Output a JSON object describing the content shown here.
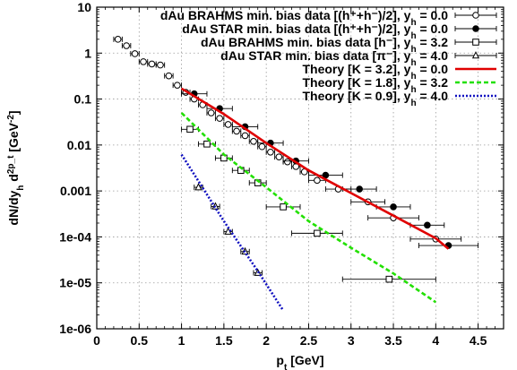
{
  "chart_data": {
    "type": "scatter",
    "x_axis": {
      "label": "p_t [GeV]",
      "range": [
        0,
        4.8
      ],
      "scale": "linear",
      "ticks": [
        0,
        0.5,
        1,
        1.5,
        2,
        2.5,
        3,
        3.5,
        4,
        4.5
      ],
      "tick_labels": [
        "0",
        "0.5",
        "1",
        "1.5",
        "2",
        "2.5",
        "3",
        "3.5",
        "4",
        "4.5"
      ]
    },
    "y_axis": {
      "label": "dN/dy_h d^2p_t [GeV^-2]",
      "range": [
        1e-06,
        10
      ],
      "scale": "log",
      "ticks": [
        1e-06,
        1e-05,
        0.0001,
        0.001,
        0.01,
        0.1,
        1,
        10
      ],
      "tick_labels": [
        "1e-06",
        "1e-05",
        "1e-04",
        "0.001",
        "0.01",
        "0.1",
        "1",
        "10"
      ]
    },
    "grid": true,
    "legend_position": "top-right",
    "series": [
      {
        "name": "dAu BRAHMS min. bias data [(h⁺+h⁻)/2], y_h = 0.0",
        "marker": "circle-open",
        "kind": "points",
        "points": [
          {
            "x": 0.25,
            "y": 2.0,
            "xerr": 0.05
          },
          {
            "x": 0.35,
            "y": 1.45,
            "xerr": 0.05
          },
          {
            "x": 0.45,
            "y": 0.97,
            "xerr": 0.05
          },
          {
            "x": 0.55,
            "y": 0.65,
            "xerr": 0.05
          },
          {
            "x": 0.65,
            "y": 0.58,
            "xerr": 0.05
          },
          {
            "x": 0.75,
            "y": 0.55,
            "xerr": 0.05
          },
          {
            "x": 0.85,
            "y": 0.32,
            "xerr": 0.05
          },
          {
            "x": 0.95,
            "y": 0.2,
            "xerr": 0.05
          },
          {
            "x": 1.05,
            "y": 0.14,
            "xerr": 0.05
          },
          {
            "x": 1.15,
            "y": 0.1,
            "xerr": 0.05
          },
          {
            "x": 1.25,
            "y": 0.075,
            "xerr": 0.05
          },
          {
            "x": 1.35,
            "y": 0.05,
            "xerr": 0.05
          },
          {
            "x": 1.45,
            "y": 0.038,
            "xerr": 0.05
          },
          {
            "x": 1.55,
            "y": 0.028,
            "xerr": 0.05
          },
          {
            "x": 1.65,
            "y": 0.02,
            "xerr": 0.05
          },
          {
            "x": 1.75,
            "y": 0.016,
            "xerr": 0.05
          },
          {
            "x": 1.85,
            "y": 0.012,
            "xerr": 0.05
          },
          {
            "x": 1.95,
            "y": 0.0092,
            "xerr": 0.05
          },
          {
            "x": 2.05,
            "y": 0.007,
            "xerr": 0.05
          },
          {
            "x": 2.15,
            "y": 0.0055,
            "xerr": 0.05
          },
          {
            "x": 2.25,
            "y": 0.0043,
            "xerr": 0.05
          },
          {
            "x": 2.35,
            "y": 0.0034,
            "xerr": 0.05
          },
          {
            "x": 2.45,
            "y": 0.0026,
            "xerr": 0.05
          },
          {
            "x": 2.6,
            "y": 0.0017,
            "xerr": 0.1
          },
          {
            "x": 2.85,
            "y": 0.0011,
            "xerr": 0.15
          },
          {
            "x": 3.2,
            "y": 0.00058,
            "xerr": 0.2
          },
          {
            "x": 3.5,
            "y": 0.00026,
            "xerr": 0.3
          },
          {
            "x": 4.0,
            "y": 9e-05,
            "xerr": 0.3
          }
        ]
      },
      {
        "name": "dAu STAR min. bias data [(h⁺+h⁻)/2], y_h = 0.0",
        "marker": "circle-filled",
        "kind": "points",
        "points": [
          {
            "x": 1.15,
            "y": 0.13,
            "xerr": 0.15
          },
          {
            "x": 1.45,
            "y": 0.062,
            "xerr": 0.15
          },
          {
            "x": 1.75,
            "y": 0.025,
            "xerr": 0.15
          },
          {
            "x": 2.05,
            "y": 0.011,
            "xerr": 0.15
          },
          {
            "x": 2.35,
            "y": 0.0045,
            "xerr": 0.15
          },
          {
            "x": 2.7,
            "y": 0.0022,
            "xerr": 0.2
          },
          {
            "x": 3.1,
            "y": 0.0011,
            "xerr": 0.2
          },
          {
            "x": 3.5,
            "y": 0.00045,
            "xerr": 0.2
          },
          {
            "x": 3.9,
            "y": 0.00018,
            "xerr": 0.2
          },
          {
            "x": 4.15,
            "y": 6.5e-05,
            "xerr": 0.35
          }
        ]
      },
      {
        "name": "dAu BRAHMS min. bias data [h⁻], y_h = 3.2",
        "marker": "square-open",
        "kind": "points",
        "points": [
          {
            "x": 1.1,
            "y": 0.022,
            "xerr": 0.1
          },
          {
            "x": 1.3,
            "y": 0.0105,
            "xerr": 0.1
          },
          {
            "x": 1.5,
            "y": 0.0052,
            "xerr": 0.1
          },
          {
            "x": 1.7,
            "y": 0.0028,
            "xerr": 0.1
          },
          {
            "x": 1.9,
            "y": 0.0015,
            "xerr": 0.1
          },
          {
            "x": 2.2,
            "y": 0.00045,
            "xerr": 0.2
          },
          {
            "x": 2.6,
            "y": 0.00012,
            "xerr": 0.3
          },
          {
            "x": 3.45,
            "y": 1.2e-05,
            "xerr": 0.55
          }
        ]
      },
      {
        "name": "dAu STAR min. bias data [π⁻], y_h = 4.0",
        "marker": "triangle-open",
        "kind": "points",
        "points": [
          {
            "x": 1.2,
            "y": 0.0012,
            "xerr": 0.05
          },
          {
            "x": 1.4,
            "y": 0.00046,
            "xerr": 0.05
          },
          {
            "x": 1.55,
            "y": 0.00013,
            "xerr": 0.05
          },
          {
            "x": 1.75,
            "y": 4.8e-05,
            "xerr": 0.05
          },
          {
            "x": 1.9,
            "y": 1.65e-05,
            "xerr": 0.05
          }
        ]
      },
      {
        "name": "Theory [K = 3.2], y_h = 0.0",
        "color": "#e00000",
        "style": "solid",
        "kind": "line",
        "points": [
          {
            "x": 1.0,
            "y": 0.17
          },
          {
            "x": 1.5,
            "y": 0.047
          },
          {
            "x": 2.0,
            "y": 0.011
          },
          {
            "x": 2.5,
            "y": 0.0028
          },
          {
            "x": 3.0,
            "y": 0.0009
          },
          {
            "x": 3.5,
            "y": 0.00029
          },
          {
            "x": 4.0,
            "y": 9.3e-05
          },
          {
            "x": 4.15,
            "y": 5.5e-05
          }
        ]
      },
      {
        "name": "Theory [K = 1.8], y_h = 3.2",
        "color": "#22e000",
        "style": "dashed",
        "kind": "line",
        "points": [
          {
            "x": 1.0,
            "y": 0.05
          },
          {
            "x": 1.5,
            "y": 0.0062
          },
          {
            "x": 2.0,
            "y": 0.0012
          },
          {
            "x": 2.5,
            "y": 0.00022
          },
          {
            "x": 3.0,
            "y": 5.8e-05
          },
          {
            "x": 3.5,
            "y": 1.6e-05
          },
          {
            "x": 4.0,
            "y": 3.8e-06
          }
        ]
      },
      {
        "name": "Theory [K = 0.9], y_h = 4.0",
        "color": "#1010c0",
        "style": "dotted",
        "kind": "line",
        "points": [
          {
            "x": 1.0,
            "y": 0.0062
          },
          {
            "x": 1.5,
            "y": 0.00022
          },
          {
            "x": 1.9,
            "y": 1.8e-05
          },
          {
            "x": 2.2,
            "y": 2.5e-06
          }
        ]
      }
    ]
  }
}
